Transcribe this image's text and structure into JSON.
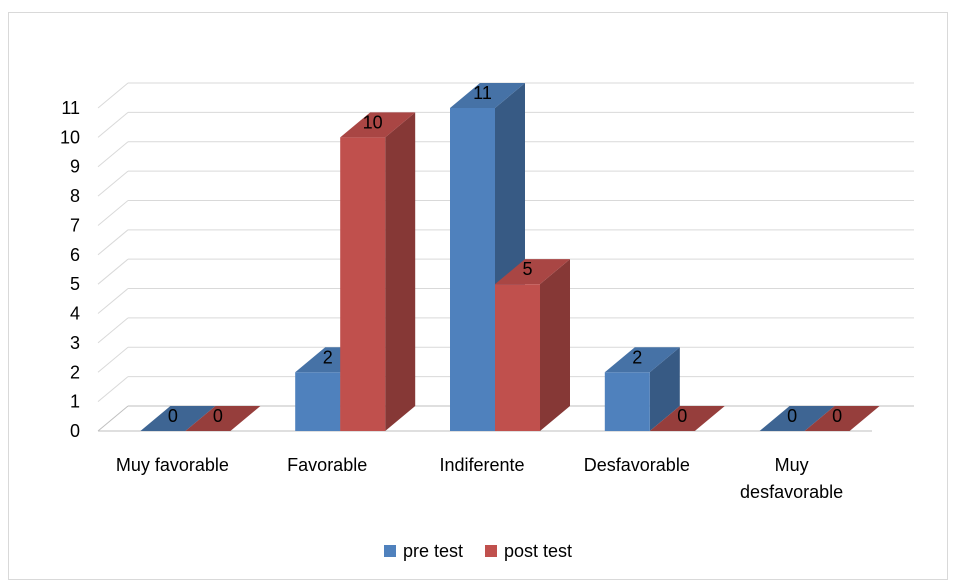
{
  "chart_data": {
    "type": "bar",
    "categories": [
      "Muy favorable",
      "Favorable",
      "Indiferente",
      "Desfavorable",
      "Muy desfavorable"
    ],
    "category_lines": [
      [
        "Muy favorable"
      ],
      [
        "Favorable"
      ],
      [
        "Indiferente"
      ],
      [
        "Desfavorable"
      ],
      [
        "Muy",
        "desfavorable"
      ]
    ],
    "series": [
      {
        "name": "pre test",
        "values": [
          0,
          2,
          11,
          2,
          0
        ],
        "color": "#4F81BD"
      },
      {
        "name": "post test",
        "values": [
          0,
          10,
          5,
          0,
          0
        ],
        "color": "#C0504D"
      }
    ],
    "ylim": [
      0,
      11
    ],
    "yticks": [
      "0",
      "1",
      "2",
      "3",
      "4",
      "5",
      "6",
      "7",
      "8",
      "9",
      "10",
      "11"
    ],
    "title": "",
    "xlabel": "",
    "ylabel": "",
    "grid": true,
    "legend_position": "bottom",
    "style": "3d-clustered-column"
  }
}
